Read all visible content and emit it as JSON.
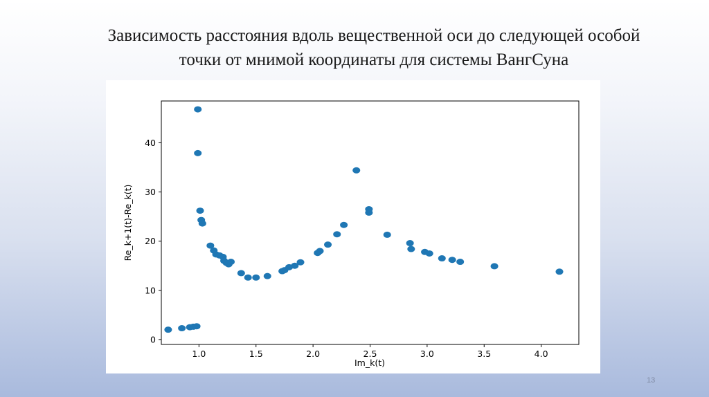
{
  "slide": {
    "title_line1": "Зависимость расстояния вдоль вещественной оси до следующей особой",
    "title_line2": "точки от мнимой координаты для системы ВангСуна",
    "page_number": "13"
  },
  "chart_data": {
    "type": "scatter",
    "title": "",
    "xlabel": "Im_k(t)",
    "ylabel": "Re_k+1(t)-Re_k(t)",
    "xlim": [
      0.67,
      4.33
    ],
    "ylim": [
      -1,
      48.5
    ],
    "xticks": [
      1.0,
      1.5,
      2.0,
      2.5,
      3.0,
      3.5,
      4.0
    ],
    "xtick_labels": [
      "1.0",
      "1.5",
      "2.0",
      "2.5",
      "3.0",
      "3.5",
      "4.0"
    ],
    "yticks": [
      0,
      10,
      20,
      30,
      40
    ],
    "ytick_labels": [
      "0",
      "10",
      "20",
      "30",
      "40"
    ],
    "grid": false,
    "marker_color": "#1f77b4",
    "points": [
      [
        0.73,
        2.0
      ],
      [
        0.85,
        2.3
      ],
      [
        0.92,
        2.5
      ],
      [
        0.95,
        2.6
      ],
      [
        0.98,
        2.7
      ],
      [
        0.99,
        46.8
      ],
      [
        0.99,
        37.9
      ],
      [
        1.01,
        26.2
      ],
      [
        1.02,
        24.3
      ],
      [
        1.03,
        23.6
      ],
      [
        1.1,
        19.1
      ],
      [
        1.13,
        18.1
      ],
      [
        1.15,
        17.3
      ],
      [
        1.18,
        17.1
      ],
      [
        1.21,
        16.8
      ],
      [
        1.22,
        16.0
      ],
      [
        1.24,
        15.6
      ],
      [
        1.26,
        15.3
      ],
      [
        1.28,
        15.8
      ],
      [
        1.37,
        13.5
      ],
      [
        1.43,
        12.6
      ],
      [
        1.5,
        12.6
      ],
      [
        1.6,
        12.9
      ],
      [
        1.73,
        13.9
      ],
      [
        1.75,
        14.1
      ],
      [
        1.79,
        14.7
      ],
      [
        1.84,
        15.0
      ],
      [
        1.89,
        15.7
      ],
      [
        2.04,
        17.6
      ],
      [
        2.06,
        18.0
      ],
      [
        2.13,
        19.3
      ],
      [
        2.21,
        21.4
      ],
      [
        2.27,
        23.3
      ],
      [
        2.38,
        34.4
      ],
      [
        2.49,
        26.5
      ],
      [
        2.49,
        25.8
      ],
      [
        2.65,
        21.3
      ],
      [
        2.85,
        19.6
      ],
      [
        2.86,
        18.4
      ],
      [
        2.98,
        17.8
      ],
      [
        3.02,
        17.5
      ],
      [
        3.13,
        16.5
      ],
      [
        3.22,
        16.2
      ],
      [
        3.29,
        15.8
      ],
      [
        3.59,
        14.9
      ],
      [
        4.16,
        13.8
      ]
    ]
  }
}
